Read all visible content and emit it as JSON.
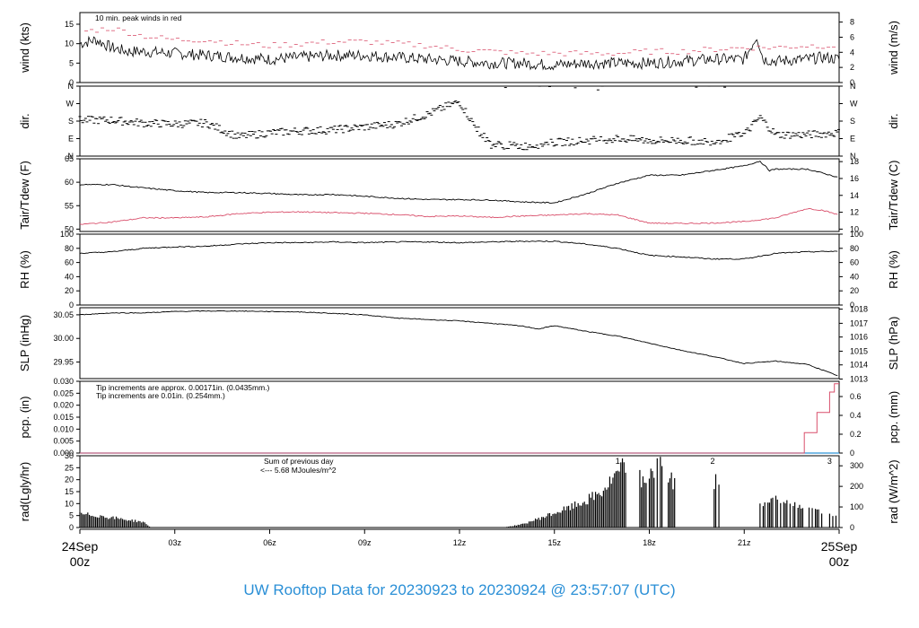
{
  "title": "UW Rooftop Data for 20230923  to  20230924 @ 23:57:07  (UTC)",
  "colors": {
    "line": "#000000",
    "red": "#d94f6b",
    "blue": "#2f95d8",
    "purple": "#a01fd6",
    "title": "#2a8fd6"
  },
  "chart_data": [
    {
      "type": "line",
      "id": "wind",
      "ylabel_left": "wind (kts)",
      "ylabel_right": "wind (m/s)",
      "ylim": [
        0,
        18
      ],
      "left_ticks": [
        0,
        5,
        10,
        15
      ],
      "right_ticks": [
        "0",
        "2",
        "4",
        "6",
        "8"
      ],
      "right_tick_values": [
        0,
        3.89,
        7.78,
        11.66,
        15.55
      ],
      "annotation": "10 min. peak winds in red",
      "series": [
        {
          "name": "wind",
          "x": [
            0,
            0.5,
            1,
            1.5,
            2,
            3,
            4,
            5,
            6,
            7,
            8,
            9,
            10,
            11,
            12,
            13,
            14,
            15,
            16,
            17,
            18,
            19,
            20,
            21,
            21.4,
            21.6,
            22,
            23,
            23.5,
            24
          ],
          "y": [
            10,
            11,
            9,
            8,
            8,
            7.5,
            7,
            6.5,
            6,
            6.5,
            7,
            7,
            6.5,
            6,
            5.5,
            5,
            5,
            4.5,
            5,
            5,
            5,
            5.5,
            6,
            6,
            12,
            6,
            5.5,
            6,
            6.5,
            6
          ]
        },
        {
          "name": "peak",
          "x": [
            0,
            1,
            2,
            3,
            4,
            5,
            6,
            7,
            8,
            9,
            10,
            11,
            12,
            13,
            14,
            15,
            16,
            17,
            18,
            19,
            20,
            21,
            22,
            23,
            24
          ],
          "y": [
            13,
            14,
            12,
            11,
            11,
            10,
            9.5,
            10,
            10.5,
            10.5,
            10,
            9.5,
            8.5,
            8,
            7.5,
            7.5,
            7.5,
            7.5,
            8,
            8,
            8.5,
            9,
            9,
            9.5,
            9.5
          ]
        }
      ]
    },
    {
      "type": "scatter",
      "id": "dir",
      "ylabel_left": "dir.",
      "ylabel_right": "dir.",
      "ylim": [
        0,
        360
      ],
      "tick_labels": [
        "N",
        "E",
        "S",
        "W",
        "N"
      ],
      "tick_values": [
        0,
        90,
        180,
        270,
        360
      ],
      "series": [
        {
          "name": "direction",
          "x": [
            0,
            1,
            2,
            3,
            4,
            5,
            6,
            7,
            8,
            9,
            10,
            11,
            11.5,
            12,
            12.5,
            13,
            14,
            15,
            16,
            17,
            18,
            19,
            20,
            21,
            21.5,
            22,
            23,
            24
          ],
          "y": [
            185,
            185,
            170,
            165,
            170,
            100,
            120,
            130,
            135,
            150,
            165,
            215,
            250,
            280,
            150,
            60,
            50,
            70,
            80,
            90,
            80,
            80,
            75,
            110,
            200,
            110,
            110,
            120
          ]
        }
      ]
    },
    {
      "type": "line",
      "id": "temp",
      "ylabel_left": "Tair/Tdew (F)",
      "ylabel_right": "Tair/Tdew (C)",
      "ylim": [
        49.5,
        65
      ],
      "left_ticks": [
        50,
        55,
        60,
        65
      ],
      "right_ticks": [
        "10",
        "12",
        "14",
        "16",
        "18"
      ],
      "right_tick_values": [
        50,
        53.6,
        57.2,
        60.8,
        64.4
      ],
      "series": [
        {
          "name": "Tair",
          "x": [
            0,
            1,
            2,
            3,
            4,
            5,
            6,
            7,
            8,
            9,
            10,
            11,
            12,
            13,
            14,
            15,
            16,
            17,
            18,
            19,
            20,
            21,
            21.5,
            21.8,
            22,
            23,
            24
          ],
          "y": [
            59.5,
            59.5,
            58.8,
            58.2,
            57.8,
            57.8,
            57.6,
            57.3,
            57.4,
            57.0,
            56.6,
            56.3,
            56.3,
            56.2,
            55.8,
            55.6,
            57.5,
            59.8,
            61.5,
            61.5,
            62.5,
            63.5,
            64.5,
            62.5,
            62.8,
            62.8,
            61.0
          ]
        },
        {
          "name": "Tdew",
          "x": [
            0,
            1,
            2,
            3,
            4,
            5,
            6,
            7,
            8,
            9,
            10,
            11,
            12,
            13,
            14,
            15,
            16,
            17,
            18,
            19,
            20,
            21,
            22,
            23,
            23.5,
            24
          ],
          "y": [
            51.0,
            51.5,
            52.4,
            52.4,
            52.6,
            53.3,
            53.6,
            53.7,
            53.5,
            53.4,
            53.1,
            52.7,
            52.8,
            52.5,
            52.8,
            53.0,
            53.3,
            53.0,
            51.3,
            51.2,
            51.3,
            51.6,
            52.4,
            54.4,
            54.0,
            53.0
          ]
        }
      ]
    },
    {
      "type": "line",
      "id": "rh",
      "ylabel_left": "RH (%)",
      "ylabel_right": "RH (%)",
      "ylim": [
        0,
        100
      ],
      "left_ticks": [
        0,
        20,
        40,
        60,
        80,
        100
      ],
      "right_ticks": [
        "0",
        "20",
        "40",
        "60",
        "80",
        "100"
      ],
      "right_tick_values": [
        0,
        20,
        40,
        60,
        80,
        100
      ],
      "series": [
        {
          "name": "RH",
          "x": [
            0,
            1,
            2,
            3,
            4,
            5,
            6,
            7,
            8,
            9,
            10,
            11,
            12,
            13,
            14,
            15,
            16,
            17,
            18,
            19,
            20,
            21,
            22,
            23,
            24
          ],
          "y": [
            73,
            75,
            80,
            82,
            83,
            86,
            88,
            88,
            89,
            88,
            89,
            89,
            88,
            89,
            90,
            90,
            86,
            80,
            70,
            68,
            65,
            65,
            73,
            75,
            76
          ]
        }
      ]
    },
    {
      "type": "line",
      "id": "slp",
      "ylabel_left": "SLP (inHg)",
      "ylabel_right": "SLP (hPa)",
      "ylim": [
        29.915,
        30.065
      ],
      "left_ticks": [
        29.95,
        30.0,
        30.05
      ],
      "left_tick_labels": [
        "29.95",
        "30.00",
        "30.05"
      ],
      "right_ticks": [
        "1013",
        "1014",
        "1015",
        "1016",
        "1017",
        "1018"
      ],
      "right_tick_values": [
        29.914,
        29.944,
        29.973,
        30.003,
        30.032,
        30.062
      ],
      "series": [
        {
          "name": "SLP",
          "x": [
            0,
            1,
            2,
            3,
            4,
            5,
            6,
            7,
            8,
            9,
            10,
            11,
            12,
            13,
            14,
            14.5,
            15,
            16,
            17,
            18,
            19,
            20,
            21,
            22,
            23,
            24
          ],
          "y": [
            30.05,
            30.054,
            30.054,
            30.057,
            30.058,
            30.058,
            30.057,
            30.056,
            30.053,
            30.05,
            30.043,
            30.04,
            30.037,
            30.032,
            30.026,
            30.02,
            30.027,
            30.015,
            30.005,
            29.99,
            29.975,
            29.962,
            29.947,
            29.952,
            29.945,
            29.92
          ]
        }
      ]
    },
    {
      "type": "line",
      "id": "pcp",
      "ylabel_left": "pcp. (in)",
      "ylabel_right": "pcp. (mm)",
      "ylim": [
        0,
        0.03
      ],
      "left_ticks": [
        0.0,
        0.005,
        0.01,
        0.015,
        0.02,
        0.025,
        0.03
      ],
      "left_tick_labels": [
        "0.000",
        "0.005",
        "0.010",
        "0.015",
        "0.020",
        "0.025",
        "0.030"
      ],
      "right_ticks": [
        "0",
        "0.2",
        "0.4",
        "0.6"
      ],
      "right_tick_values": [
        0,
        0.00787,
        0.01575,
        0.02362
      ],
      "annotation_red": "Tip increments are approx. 0.00171in. (0.0435mm.)",
      "annotation_blue": "Tip increments are 0.01in. (0.254mm.)",
      "series": [
        {
          "name": "pcp-approx",
          "x": [
            0,
            22.9,
            22.9,
            23.3,
            23.3,
            23.7,
            23.7,
            23.85,
            23.85,
            24
          ],
          "y": [
            0,
            0,
            0.0085,
            0.0085,
            0.017,
            0.017,
            0.0255,
            0.0255,
            0.029,
            0.029
          ]
        },
        {
          "name": "pcp-tip",
          "x": [
            0,
            24
          ],
          "y": [
            0,
            0
          ]
        }
      ]
    },
    {
      "type": "bar",
      "id": "rad",
      "ylabel_left": "rad(Lgly/hr)",
      "ylabel_right": "rad (W/m^2)",
      "ylim": [
        0,
        30
      ],
      "left_ticks": [
        0,
        5,
        10,
        15,
        20,
        25,
        30
      ],
      "right_ticks": [
        "0",
        "100",
        "200",
        "300"
      ],
      "right_tick_values": [
        0,
        8.6,
        17.2,
        25.8
      ],
      "annotation_sum": "Sum of previous day",
      "annotation_value": "<--- 5.68 MJoules/m^2",
      "marker_labels": [
        "1",
        "2",
        "3"
      ],
      "marker_x": [
        17.0,
        20.0,
        23.7
      ],
      "series": [
        {
          "name": "radiation",
          "x": [
            0,
            0.5,
            1,
            1.5,
            2,
            2.2,
            13.5,
            14,
            14.5,
            15,
            15.5,
            16,
            16.5,
            17,
            17.3,
            17.8,
            18,
            18.3,
            18.6,
            19,
            20.0,
            20.2,
            21.5,
            22,
            22.5,
            23,
            23.5,
            24
          ],
          "y": [
            6,
            5.5,
            4.5,
            3.5,
            2.5,
            0.5,
            0.3,
            1.5,
            4,
            6.5,
            9,
            12,
            16,
            24,
            29,
            21,
            24,
            28,
            22,
            20,
            20,
            22,
            10,
            13,
            12,
            8,
            7,
            6
          ]
        }
      ]
    }
  ],
  "x_axis": {
    "ticks": [
      "24Sep",
      "03z",
      "06z",
      "09z",
      "12z",
      "15z",
      "18z",
      "21z",
      "25Sep"
    ],
    "tick_values": [
      0,
      3,
      6,
      9,
      12,
      15,
      18,
      21,
      24
    ],
    "sublabels": [
      "00z",
      "00z"
    ]
  }
}
